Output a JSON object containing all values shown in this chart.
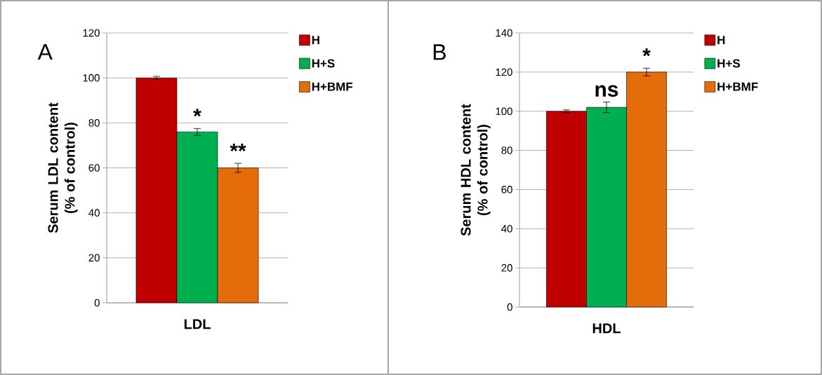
{
  "chart_data": [
    {
      "type": "bar",
      "categories": [
        "LDL"
      ],
      "ylabel": "Serum LDL content (% of control)",
      "ylim": [
        0,
        120
      ],
      "yticks": [
        0,
        20,
        40,
        60,
        80,
        100,
        120
      ],
      "grid": "y",
      "legend": "right",
      "series": [
        {
          "name": "H",
          "color": "#c00000",
          "values": [
            100
          ],
          "errors": [
            0.7
          ]
        },
        {
          "name": "H+S",
          "color": "#00b050",
          "values": [
            76
          ],
          "errors": [
            1.5
          ]
        },
        {
          "name": "H+BMF",
          "color": "#e46c0a",
          "values": [
            60
          ],
          "errors": [
            2
          ]
        }
      ],
      "annotations": [
        "A",
        "*",
        "**"
      ]
    },
    {
      "type": "bar",
      "categories": [
        "HDL"
      ],
      "ylabel": "Serum HDL content (% of control)",
      "ylim": [
        0,
        140
      ],
      "yticks": [
        0,
        20,
        40,
        60,
        80,
        100,
        120,
        140
      ],
      "grid": "y",
      "legend": "right",
      "series": [
        {
          "name": "H",
          "color": "#c00000",
          "values": [
            100
          ],
          "errors": [
            0.7
          ]
        },
        {
          "name": "H+S",
          "color": "#00b050",
          "values": [
            102
          ],
          "errors": [
            2.7
          ]
        },
        {
          "name": "H+BMF",
          "color": "#e46c0a",
          "values": [
            120
          ],
          "errors": [
            2
          ]
        }
      ],
      "annotations": [
        "B",
        "ns",
        "*"
      ]
    }
  ]
}
